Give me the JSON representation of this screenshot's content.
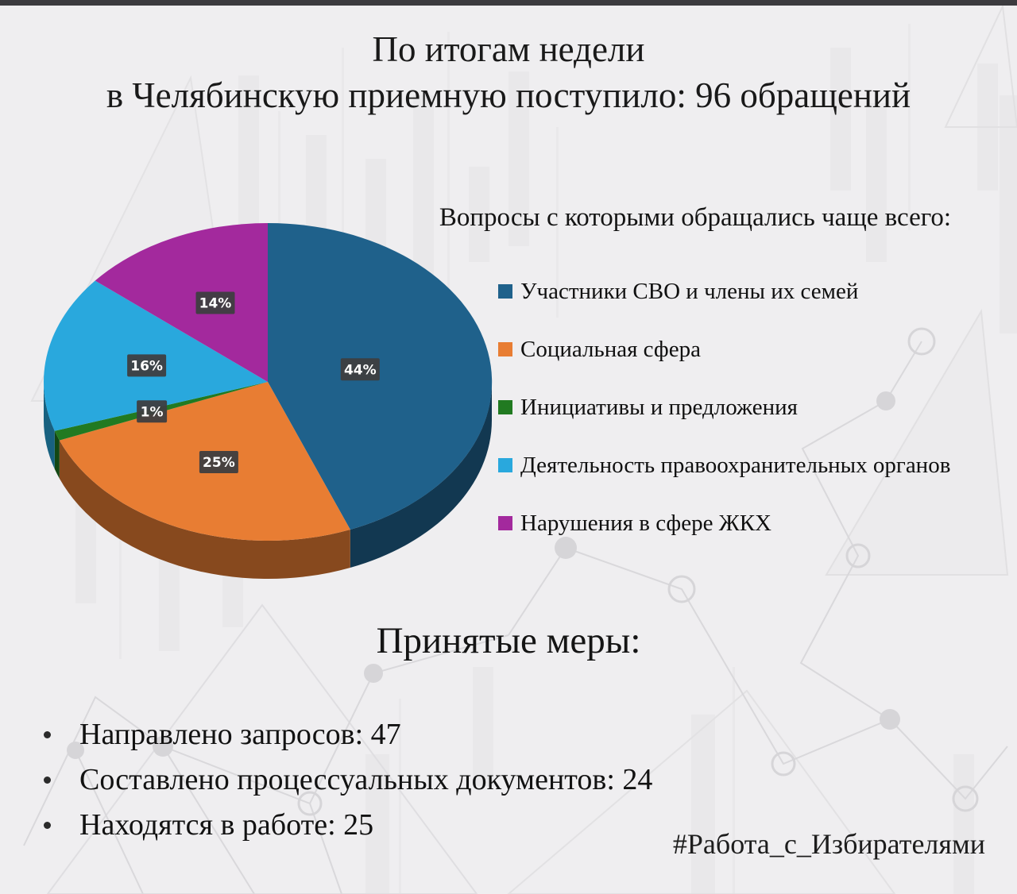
{
  "header": {
    "title_line1": "По итогам недели",
    "title_line2": "в Челябинскую приемную поступило: 96 обращений"
  },
  "legend": {
    "heading": "Вопросы с которыми обращались чаще всего:",
    "items": [
      {
        "label": "Участники СВО и члены их семей"
      },
      {
        "label": "Социальная сфера"
      },
      {
        "label": "Инициативы и предложения"
      },
      {
        "label": "Деятельность правоохранительных органов"
      },
      {
        "label": "Нарушения в сфере ЖКХ"
      }
    ]
  },
  "measures": {
    "heading": "Принятые меры:",
    "items": [
      "Направлено запросов: 47",
      "Составлено процессуальных документов: 24",
      "Находятся в работе: 25"
    ]
  },
  "footer": {
    "hashtag": "#Работа_с_Избирателями"
  },
  "chart_data": {
    "type": "pie",
    "style": "3d",
    "title": "Вопросы с которыми обращались чаще всего:",
    "total_appeals": 96,
    "labels": [
      "Участники СВО и члены их семей",
      "Социальная сфера",
      "Инициативы и предложения",
      "Деятельность правоохранительных органов",
      "Нарушения в сфере ЖКХ"
    ],
    "values": [
      44,
      25,
      1,
      16,
      14
    ],
    "unit": "%",
    "colors": [
      "#1f618b",
      "#e87d33",
      "#217a21",
      "#29a8dd",
      "#a3299d"
    ],
    "label_box_color": "#3e3e40",
    "label_text_color": "#ffffff",
    "start_angle_deg": 0,
    "direction": "clockwise",
    "legend_position": "right",
    "grid": false
  }
}
